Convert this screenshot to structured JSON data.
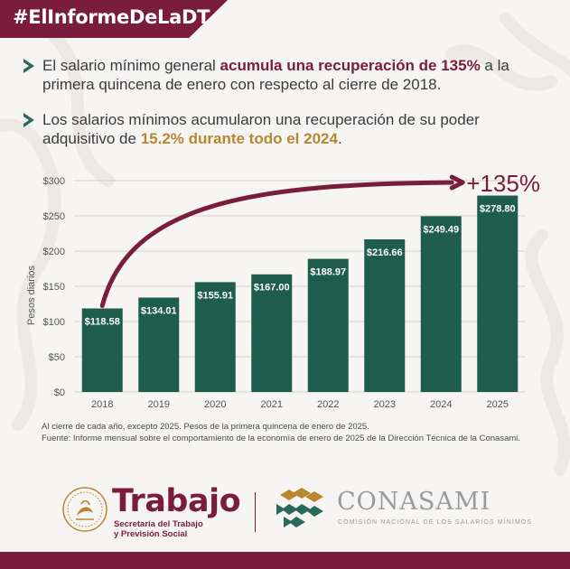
{
  "header": {
    "hashtag": "#ElInformeDeLaDT"
  },
  "bullets": [
    {
      "before": "El salario mínimo general ",
      "highlight": "acumula una recuperación de 135%",
      "after": " a la primera quincena de enero con respecto al cierre de 2018."
    },
    {
      "before": "Los salarios mínimos acumularon una recuperación de su poder adquisitivo de ",
      "highlight": "15.2% durante todo el 2024",
      "after": "."
    }
  ],
  "chart_data": {
    "type": "bar",
    "categories": [
      "2018",
      "2019",
      "2020",
      "2021",
      "2022",
      "2023",
      "2024",
      "2025"
    ],
    "values": [
      118.58,
      134.01,
      155.91,
      167.0,
      188.97,
      216.66,
      249.49,
      278.8
    ],
    "value_labels": [
      "$118.58",
      "$134.01",
      "$155.91",
      "$167.00",
      "$188.97",
      "$216.66",
      "$249.49",
      "$278.80"
    ],
    "ylabel": "Pesos diarios",
    "xlabel": "",
    "ylim": [
      0,
      300
    ],
    "yticks": [
      0,
      50,
      100,
      150,
      200,
      250,
      300
    ],
    "ytick_labels": [
      "$0",
      "$50",
      "$100",
      "$150",
      "$200",
      "$250",
      "$300"
    ],
    "annotation": "+135%",
    "grid": true
  },
  "footnote": {
    "line1": "Al cierre de cada año, excepto 2025. Pesos de la primera quincena de enero de 2025.",
    "line2": "Fuente: Informe mensual sobre el comportamiento de la economía de enero de 2025 de la Dirección Técnica de la Conasami."
  },
  "footer": {
    "trabajo_title": "Trabajo",
    "trabajo_sub1": "Secretaría del Trabajo",
    "trabajo_sub2": "y Previsión Social",
    "conasami_title": "CONASAMI",
    "conasami_sub": "COMISIÓN NACIONAL DE LOS SALARIOS MÍNIMOS"
  },
  "colors": {
    "maroon": "#7a1c3c",
    "green": "#1e5c4b",
    "gold": "#b8872f",
    "background": "#f6f5f3"
  }
}
